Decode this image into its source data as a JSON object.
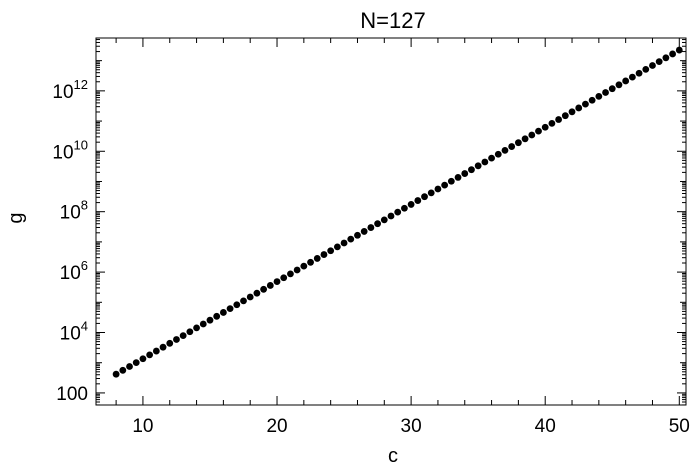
{
  "chart_data": {
    "type": "scatter",
    "title": "N=127",
    "xlabel": "c",
    "ylabel": "g",
    "xlim": [
      6.5,
      50.5
    ],
    "ylim_log10": [
      1.6,
      13.75
    ],
    "yscale": "log",
    "grid": false,
    "legend": "none",
    "marker_color": "#000000",
    "x_ticks": [
      10,
      20,
      30,
      40,
      50
    ],
    "x_tick_labels": [
      "10",
      "20",
      "30",
      "40",
      "50"
    ],
    "y_ticks_log10": [
      2,
      4,
      6,
      8,
      10,
      12
    ],
    "y_tick_labels": [
      {
        "base": "100",
        "exp": ""
      },
      {
        "base": "10",
        "exp": "4"
      },
      {
        "base": "10",
        "exp": "6"
      },
      {
        "base": "10",
        "exp": "8"
      },
      {
        "base": "10",
        "exp": "10"
      },
      {
        "base": "10",
        "exp": "12"
      }
    ],
    "series": [
      {
        "x_start": 8,
        "x_end": 50,
        "x_step": 0.5,
        "log10_y_at_start": 2.62,
        "log10_y_at_end": 13.35
      }
    ]
  }
}
